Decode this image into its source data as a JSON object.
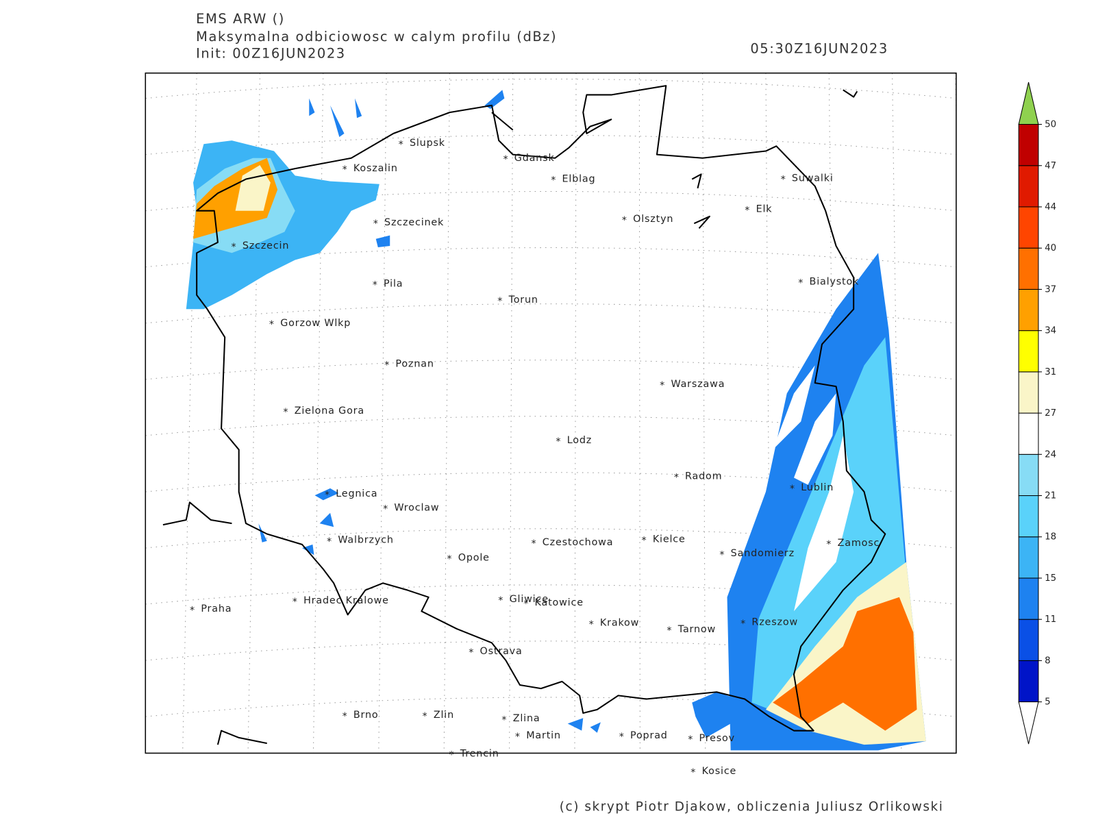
{
  "header": {
    "model": "EMS ARW ()",
    "field": "Maksymalna odbiciowosc w calym profilu (dBz)",
    "init": "Init: 00Z16JUN2023",
    "valid": "05:30Z16JUN2023"
  },
  "cities": [
    "Slupsk",
    "Koszalin",
    "Gdansk",
    "Elblag",
    "Suwalki",
    "Elk",
    "Olsztyn",
    "Szczecinek",
    "Szczecin",
    "Pila",
    "Torun",
    "Bialystok",
    "Gorzow Wlkp",
    "Poznan",
    "Warszawa",
    "Zielona Gora",
    "Lodz",
    "Radom",
    "Lublin",
    "Legnica",
    "Wroclaw",
    "Walbrzych",
    "Czestochowa",
    "Kielce",
    "Sandomierz",
    "Zamosc",
    "Opole",
    "Praha",
    "Hradec Kralowe",
    "Gliwice",
    "Katowice",
    "Krakow",
    "Tarnow",
    "Rzeszow",
    "Ostrava",
    "Brno",
    "Zlin",
    "Zlina",
    "Martin",
    "Poprad",
    "Presov",
    "Trencin",
    "Kosice"
  ],
  "colorbar": {
    "levels": [
      5,
      8,
      11,
      15,
      18,
      21,
      24,
      27,
      31,
      34,
      37,
      40,
      44,
      47,
      50
    ],
    "colors": [
      "#0014c8",
      "#0a50e6",
      "#1e82f0",
      "#3cb4f5",
      "#5ad2fa",
      "#87dcf5",
      "#ffffff",
      "#faf5c8",
      "#ffff00",
      "#ffa000",
      "#ff7000",
      "#ff4500",
      "#e01a00",
      "#c00000"
    ],
    "over_color": "#8fd14f",
    "under_color": "#ffffff"
  },
  "footer": "(c) skrypt Piotr Djakow, obliczenia Juliusz Orlikowski"
}
